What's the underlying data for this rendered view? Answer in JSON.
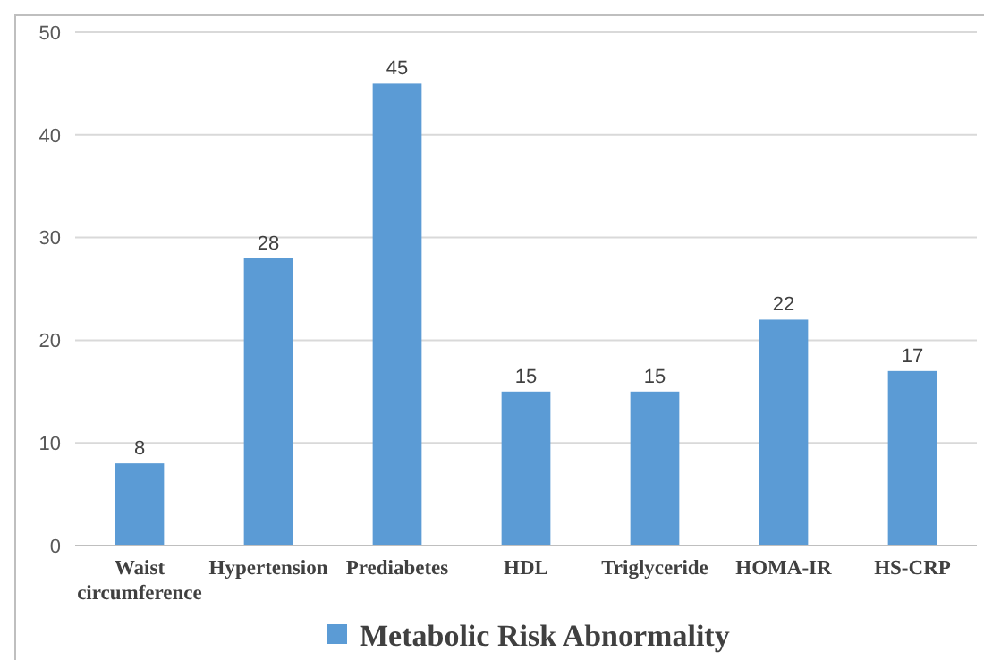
{
  "chart_data": {
    "type": "bar",
    "categories": [
      "Waist circumference",
      "Hypertension",
      "Prediabetes",
      "HDL",
      "Triglyceride",
      "HOMA-IR",
      "HS-CRP"
    ],
    "series": [
      {
        "name": "Metabolic Risk Abnormality",
        "color": "#5b9bd5",
        "values": [
          8,
          28,
          45,
          15,
          15,
          22,
          17
        ]
      }
    ],
    "ylim": [
      0,
      50
    ],
    "yticks": [
      0,
      10,
      20,
      30,
      40,
      50
    ],
    "grid": "y",
    "data_labels": true,
    "legend": "bottom"
  }
}
